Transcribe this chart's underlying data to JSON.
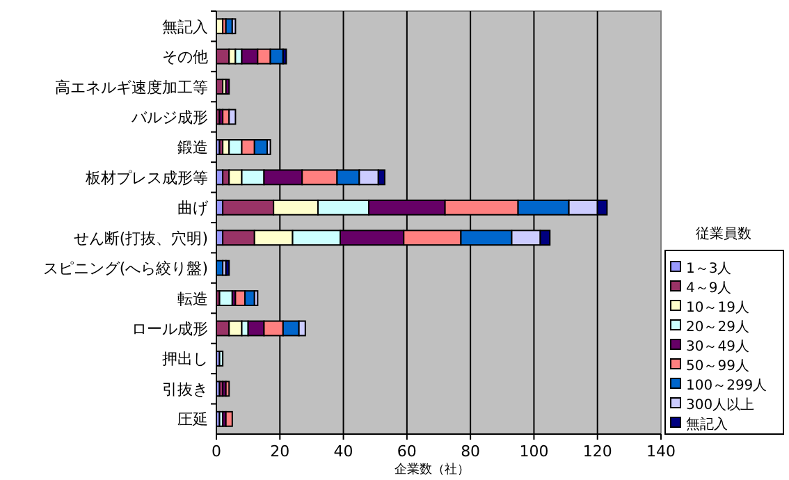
{
  "chart_data": {
    "type": "bar",
    "orientation": "horizontal",
    "stacked": true,
    "xlabel": "企業数（社）",
    "legend_title": "従業員数",
    "legend": "right",
    "grid": "x",
    "categories": [
      "無記入",
      "その他",
      "高エネルギ速度加工等",
      "バルジ成形",
      "鍛造",
      "板材プレス成形等",
      "曲げ",
      "せん断(打抜、穴明)",
      "スピニング(へら絞り盤)",
      "転造",
      "ロール成形",
      "押出し",
      "引抜き",
      "圧延"
    ],
    "xlim": [
      0,
      140
    ],
    "xticks": [
      0,
      20,
      40,
      60,
      80,
      100,
      120,
      140
    ],
    "series": [
      {
        "name": "1～3人",
        "color": "#9999ff",
        "values": [
          0,
          0,
          0,
          0,
          1,
          2,
          2,
          2,
          0,
          0,
          0,
          1,
          1,
          1
        ]
      },
      {
        "name": "4～9人",
        "color": "#993366",
        "values": [
          0,
          4,
          2,
          1,
          1,
          2,
          16,
          10,
          0,
          1,
          4,
          0,
          1,
          0
        ]
      },
      {
        "name": "10～19人",
        "color": "#ffffcc",
        "values": [
          2,
          2,
          1,
          0,
          2,
          4,
          14,
          12,
          0,
          0,
          4,
          0,
          0,
          0
        ]
      },
      {
        "name": "20～29人",
        "color": "#ccffff",
        "values": [
          0,
          2,
          0,
          0,
          4,
          7,
          16,
          15,
          0,
          4,
          2,
          1,
          0,
          1
        ]
      },
      {
        "name": "30～49人",
        "color": "#660066",
        "values": [
          0,
          5,
          1,
          1,
          0,
          12,
          24,
          20,
          0,
          1,
          5,
          0,
          1,
          1
        ]
      },
      {
        "name": "50～99人",
        "color": "#ff8080",
        "values": [
          1,
          4,
          0,
          2,
          4,
          11,
          23,
          18,
          0,
          3,
          6,
          0,
          1,
          2
        ]
      },
      {
        "name": "100～299人",
        "color": "#0066cc",
        "values": [
          2,
          4,
          0,
          0,
          4,
          7,
          16,
          16,
          2,
          3,
          5,
          0,
          0,
          0
        ]
      },
      {
        "name": "300人以上",
        "color": "#ccccff",
        "values": [
          1,
          0,
          0,
          2,
          1,
          6,
          9,
          9,
          1,
          1,
          2,
          0,
          0,
          0
        ]
      },
      {
        "name": "無記入",
        "color": "#000080",
        "values": [
          0,
          1,
          0,
          0,
          0,
          2,
          3,
          3,
          1,
          0,
          0,
          0,
          0,
          0
        ]
      }
    ]
  }
}
